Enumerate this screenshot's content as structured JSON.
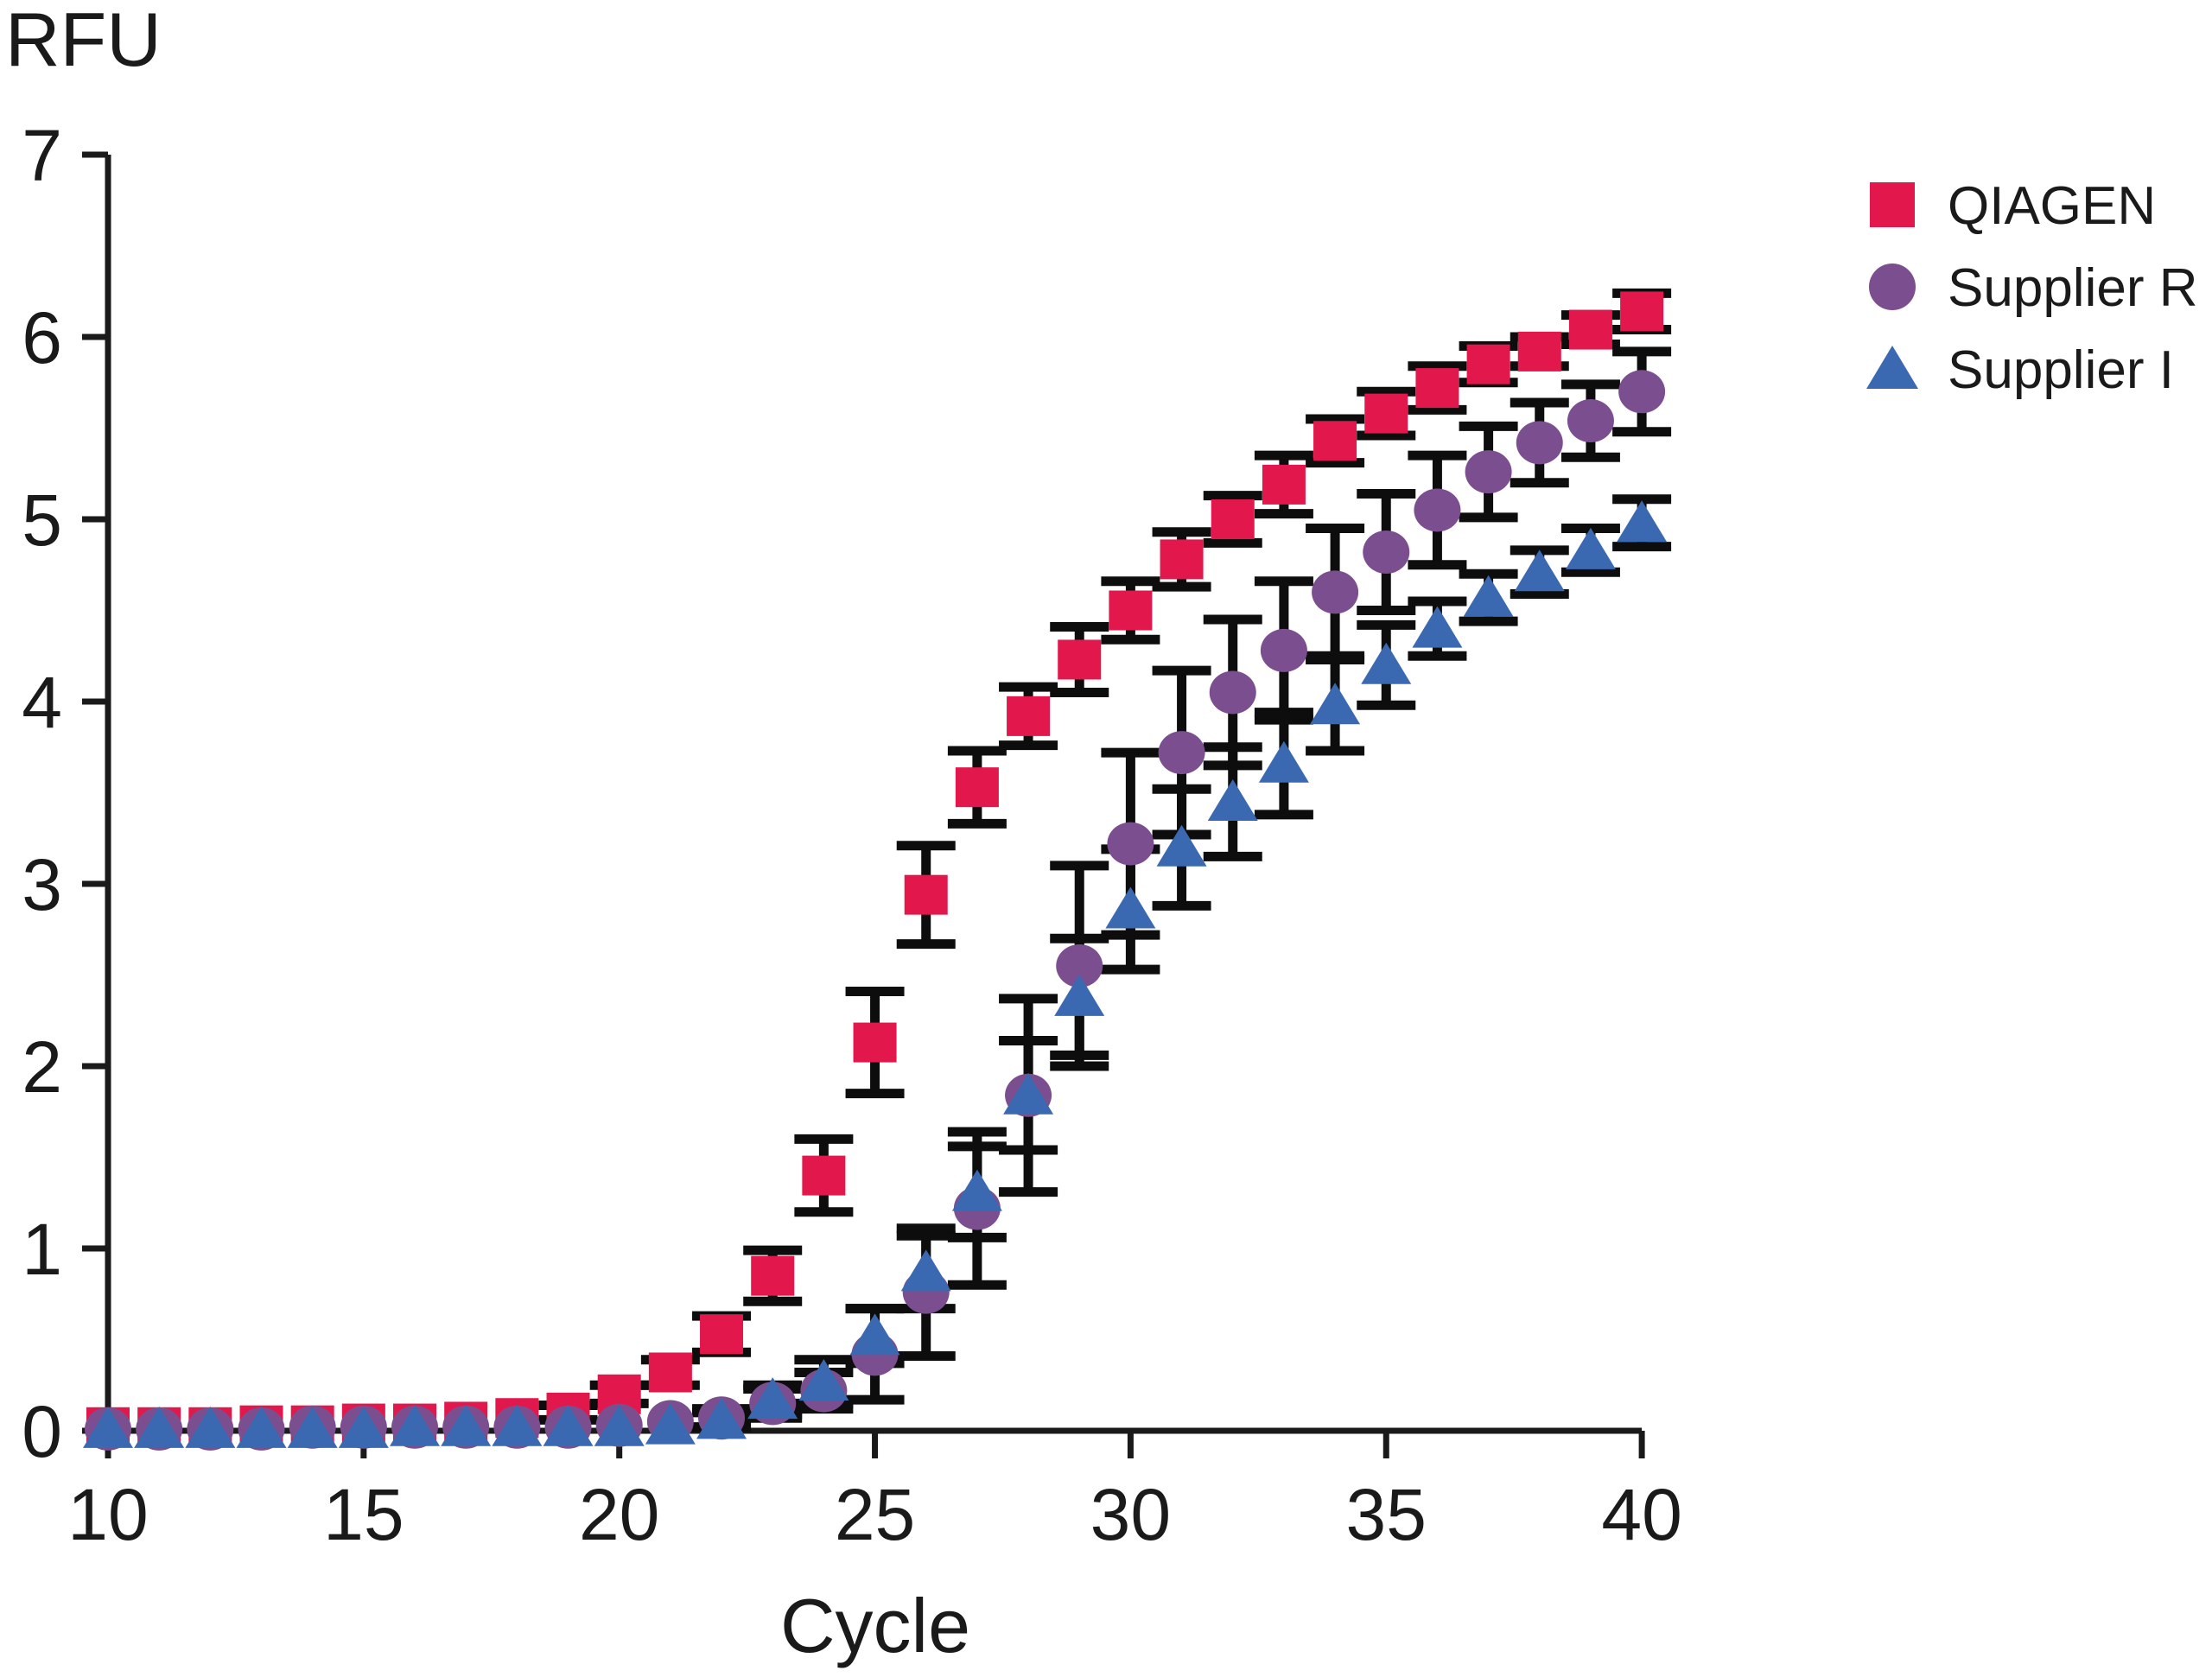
{
  "page": {
    "background": "#ffffff",
    "text_color": "#1a1a1a"
  },
  "chart_data": {
    "type": "scatter",
    "title": "",
    "xlabel": "Cycle",
    "ylabel": "RFU",
    "grid": false,
    "legend_position": "top-right",
    "xlim": [
      10,
      40
    ],
    "ylim": [
      0,
      7
    ],
    "x_ticks": [
      10,
      15,
      20,
      25,
      30,
      35,
      40
    ],
    "y_ticks": [
      0,
      1,
      2,
      3,
      4,
      5,
      6,
      7
    ],
    "x": [
      10,
      11,
      12,
      13,
      14,
      15,
      16,
      17,
      18,
      19,
      20,
      21,
      22,
      23,
      24,
      25,
      26,
      27,
      28,
      29,
      30,
      31,
      32,
      33,
      34,
      35,
      36,
      37,
      38,
      39,
      40
    ],
    "series": [
      {
        "name": "QIAGEN",
        "marker": "square",
        "color": "#e2174b",
        "values": [
          0.02,
          0.02,
          0.02,
          0.03,
          0.03,
          0.04,
          0.04,
          0.05,
          0.07,
          0.1,
          0.2,
          0.32,
          0.53,
          0.85,
          1.4,
          2.13,
          2.94,
          3.53,
          3.92,
          4.23,
          4.5,
          4.78,
          5.0,
          5.19,
          5.43,
          5.58,
          5.72,
          5.85,
          5.92,
          6.04,
          6.14
        ],
        "errors": [
          0,
          0,
          0,
          0,
          0,
          0,
          0,
          0,
          0,
          0.04,
          0.05,
          0.07,
          0.1,
          0.14,
          0.2,
          0.28,
          0.27,
          0.2,
          0.16,
          0.18,
          0.16,
          0.15,
          0.13,
          0.16,
          0.12,
          0.12,
          0.12,
          0.1,
          0.08,
          0.08,
          0.1
        ]
      },
      {
        "name": "Supplier R",
        "marker": "circle",
        "color": "#7b4e8f",
        "values": [
          0.01,
          0.01,
          0.01,
          0.01,
          0.02,
          0.02,
          0.02,
          0.02,
          0.02,
          0.02,
          0.03,
          0.05,
          0.07,
          0.15,
          0.22,
          0.42,
          0.76,
          1.22,
          1.84,
          2.55,
          3.22,
          3.72,
          4.05,
          4.28,
          4.6,
          4.82,
          5.05,
          5.26,
          5.42,
          5.54,
          5.7
        ],
        "errors": [
          0,
          0,
          0,
          0,
          0,
          0,
          0,
          0,
          0,
          0,
          0,
          0,
          0.05,
          0.08,
          0.1,
          0.25,
          0.35,
          0.42,
          0.53,
          0.55,
          0.5,
          0.45,
          0.4,
          0.38,
          0.35,
          0.32,
          0.3,
          0.25,
          0.22,
          0.2,
          0.22
        ]
      },
      {
        "name": "Supplier I",
        "marker": "triangle",
        "color": "#3a69b2",
        "values": [
          0.01,
          0.01,
          0.01,
          0.01,
          0.01,
          0.01,
          0.02,
          0.02,
          0.02,
          0.02,
          0.02,
          0.03,
          0.06,
          0.17,
          0.27,
          0.52,
          0.87,
          1.31,
          1.84,
          2.38,
          2.86,
          3.2,
          3.45,
          3.66,
          3.98,
          4.2,
          4.4,
          4.57,
          4.71,
          4.83,
          4.98
        ],
        "errors": [
          0,
          0,
          0,
          0,
          0,
          0,
          0,
          0,
          0,
          0,
          0,
          0,
          0.04,
          0.08,
          0.12,
          0.15,
          0.2,
          0.25,
          0.3,
          0.32,
          0.33,
          0.32,
          0.3,
          0.28,
          0.25,
          0.22,
          0.15,
          0.13,
          0.12,
          0.12,
          0.13
        ]
      }
    ]
  }
}
